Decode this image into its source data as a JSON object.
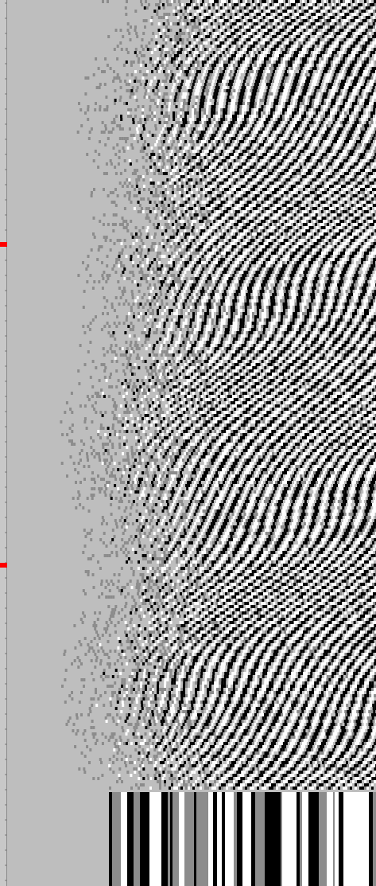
{
  "colors": {
    "background": "#bebebe",
    "ruler_bg": "#c8c8c8",
    "tick": "#7a7a7a",
    "marker": "#ff0000",
    "trace_dark": "#000000",
    "trace_light": "#ffffff",
    "trace_mid": "#8c8c8c"
  },
  "markers": {
    "count": 2
  }
}
